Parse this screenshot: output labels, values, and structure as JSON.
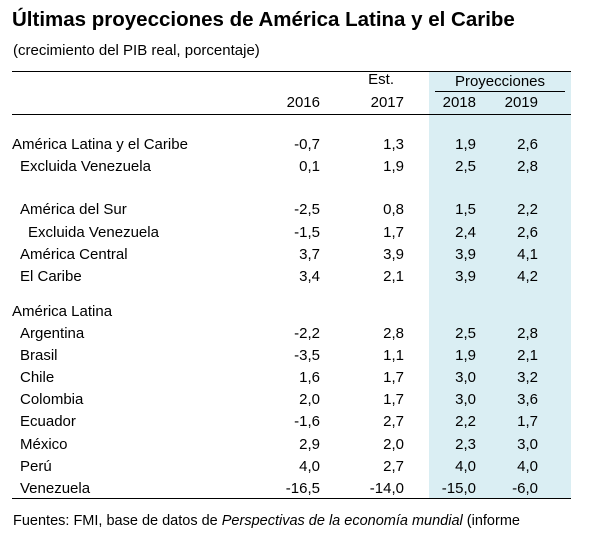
{
  "title": "Últimas proyecciones de América Latina y el Caribe",
  "subtitle": "(crecimiento del PIB real, porcentaje)",
  "header": {
    "col1": "2016",
    "est_label": "Est.",
    "col2": "2017",
    "proj_label": "Proyecciones",
    "col3": "2018",
    "col4": "2019"
  },
  "rows": [
    {
      "label": "América Latina y el Caribe",
      "v2016": "-0,7",
      "v2017": "1,3",
      "v2018": "1,9",
      "v2019": "2,6"
    },
    {
      "label": "Excluida Venezuela",
      "v2016": "0,1",
      "v2017": "1,9",
      "v2018": "2,5",
      "v2019": "2,8"
    },
    {
      "label": "América del Sur",
      "v2016": "-2,5",
      "v2017": "0,8",
      "v2018": "1,5",
      "v2019": "2,2"
    },
    {
      "label": "Excluida Venezuela",
      "v2016": "-1,5",
      "v2017": "1,7",
      "v2018": "2,4",
      "v2019": "2,6"
    },
    {
      "label": "América Central",
      "v2016": "3,7",
      "v2017": "3,9",
      "v2018": "3,9",
      "v2019": "4,1"
    },
    {
      "label": "El Caribe",
      "v2016": "3,4",
      "v2017": "2,1",
      "v2018": "3,9",
      "v2019": "4,2"
    },
    {
      "label": "América Latina"
    },
    {
      "label": "Argentina",
      "v2016": "-2,2",
      "v2017": "2,8",
      "v2018": "2,5",
      "v2019": "2,8"
    },
    {
      "label": "Brasil",
      "v2016": "-3,5",
      "v2017": "1,1",
      "v2018": "1,9",
      "v2019": "2,1"
    },
    {
      "label": "Chile",
      "v2016": "1,6",
      "v2017": "1,7",
      "v2018": "3,0",
      "v2019": "3,2"
    },
    {
      "label": "Colombia",
      "v2016": "2,0",
      "v2017": "1,7",
      "v2018": "3,0",
      "v2019": "3,6"
    },
    {
      "label": "Ecuador",
      "v2016": "-1,6",
      "v2017": "2,7",
      "v2018": "2,2",
      "v2019": "1,7"
    },
    {
      "label": "México",
      "v2016": "2,9",
      "v2017": "2,0",
      "v2018": "2,3",
      "v2019": "3,0"
    },
    {
      "label": "Perú",
      "v2016": "4,0",
      "v2017": "2,7",
      "v2018": "4,0",
      "v2019": "4,0"
    },
    {
      "label": "Venezuela",
      "v2016": "-16,5",
      "v2017": "-14,0",
      "v2018": "-15,0",
      "v2019": "-6,0"
    }
  ],
  "footer": {
    "prefix": "Fuentes: FMI, base de datos de ",
    "italic": "Perspectivas de la economía mundial",
    "suffix": " (informe"
  }
}
